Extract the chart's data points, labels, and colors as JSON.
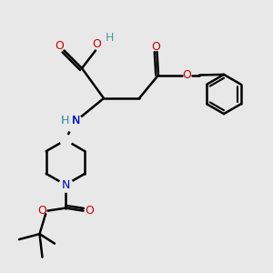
{
  "bg_color": "#e8e8e8",
  "atom_colors": {
    "C": "#000000",
    "N": "#0000cc",
    "O": "#cc0000",
    "H": "#4a9a9a"
  },
  "bond_color": "#000000",
  "bond_width": 1.8,
  "figsize": [
    3.0,
    3.0
  ],
  "dpi": 100
}
